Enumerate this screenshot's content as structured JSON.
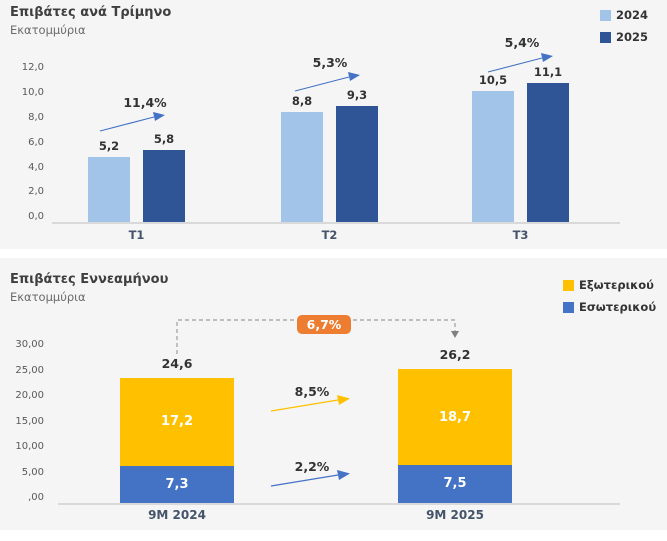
{
  "page": {
    "background": "#ffffff",
    "panel_background": "#f5f5f6"
  },
  "chart_data": [
    {
      "type": "bar",
      "title": "Επιβάτες ανά Τρίμηνο",
      "subtitle": "Εκατομμύρια",
      "categories": [
        "T1",
        "T2",
        "T3"
      ],
      "series": [
        {
          "name": "2024",
          "color": "#A2C4E8",
          "values": [
            5.2,
            8.8,
            10.5
          ],
          "labels": [
            "5,2",
            "8,8",
            "10,5"
          ]
        },
        {
          "name": "2025",
          "color": "#2F5597",
          "values": [
            5.8,
            9.3,
            11.1
          ],
          "labels": [
            "5,8",
            "9,3",
            "11,1"
          ]
        }
      ],
      "growth_labels": [
        "11,4%",
        "5,3%",
        "5,4%"
      ],
      "growth_arrow_color": "#4472C4",
      "ylim": [
        0,
        12
      ],
      "y_tick_labels": [
        "12,0",
        "10,0",
        "8,0",
        "6,0",
        "4,0",
        "2,0",
        "0,0"
      ],
      "grid": false,
      "legend_position": "top-right"
    },
    {
      "type": "stacked-bar",
      "title": "Επιβάτες Εννεαμήνου",
      "subtitle": "Εκατομμύρια",
      "categories": [
        "9M 2024",
        "9M 2025"
      ],
      "series": [
        {
          "name": "Εξωτερικού",
          "color": "#FFC000",
          "values": [
            17.2,
            18.7
          ],
          "labels": [
            "17,2",
            "18,7"
          ]
        },
        {
          "name": "Εσωτερικού",
          "color": "#4472C4",
          "values": [
            7.3,
            7.5
          ],
          "labels": [
            "7,3",
            "7,5"
          ]
        }
      ],
      "totals": [
        24.6,
        26.2
      ],
      "total_labels": [
        "24,6",
        "26,2"
      ],
      "growth": {
        "total": "6,7%",
        "external": "8,5%",
        "domestic": "2,2%"
      },
      "badge_color": "#ED7D31",
      "connector_color": "#9E9E9E",
      "ylim": [
        0,
        30
      ],
      "y_tick_labels": [
        "30,00",
        "25,00",
        "20,00",
        "15,00",
        "10,00",
        "5,00",
        ",00"
      ],
      "grid": false,
      "legend_position": "top-right"
    }
  ]
}
